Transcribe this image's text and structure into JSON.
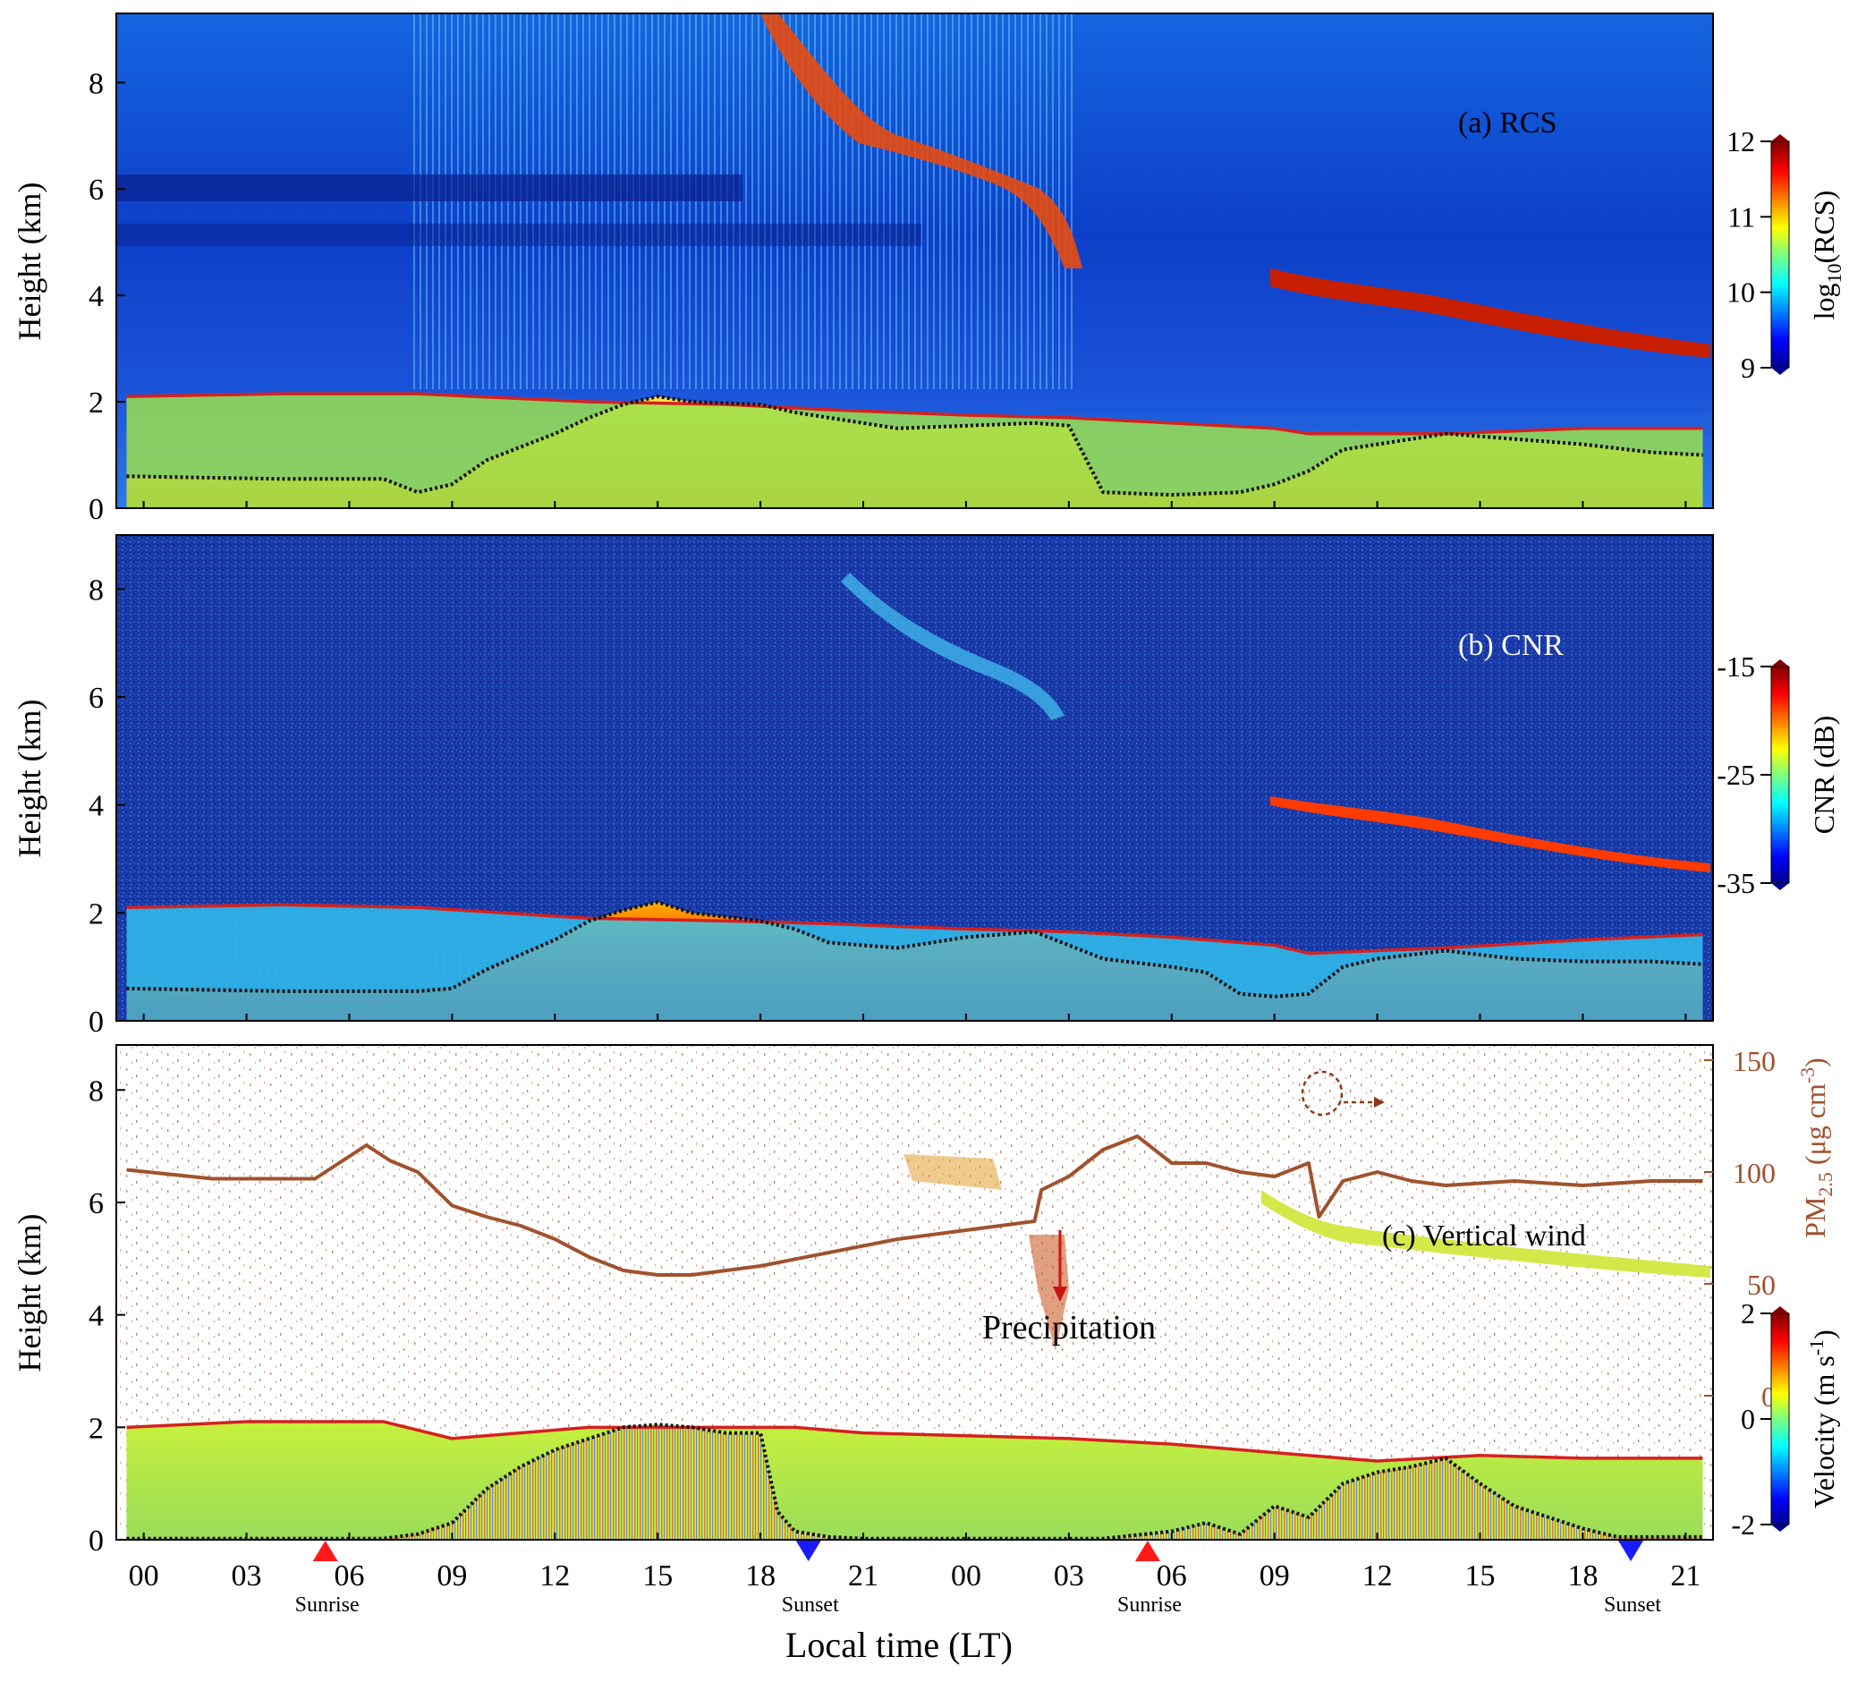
{
  "chart_data": [
    {
      "type": "heatmap",
      "panel": "a",
      "panel_label": "(a) RCS",
      "ylabel": "Height (km)",
      "ylim": [
        0,
        9.3
      ],
      "yticks": [
        "0",
        "2",
        "4",
        "6",
        "8"
      ],
      "colorbar": {
        "label": "log10(RCS)",
        "label_main": "log",
        "label_sub": "10",
        "label_rest": "(RCS)",
        "range": [
          9,
          12
        ],
        "ticks": [
          "9",
          "10",
          "11",
          "12"
        ],
        "colormap": "jet"
      },
      "lines": [
        {
          "color": "#d62020",
          "x": [
            -0.5,
            4,
            8,
            13,
            17,
            20,
            24,
            27,
            30,
            33,
            34,
            38,
            42,
            45.5
          ],
          "y": [
            2.1,
            2.15,
            2.15,
            2.0,
            1.95,
            1.85,
            1.75,
            1.7,
            1.6,
            1.5,
            1.4,
            1.4,
            1.5,
            1.5
          ]
        },
        {
          "color": "#111111",
          "dotted": true,
          "x": [
            -0.5,
            4,
            7,
            8,
            9,
            10,
            12,
            13,
            14,
            15,
            16,
            18,
            19,
            20,
            22,
            24,
            26,
            27,
            28,
            30,
            32,
            33,
            34,
            35,
            36,
            38,
            40,
            42,
            44,
            45.5
          ],
          "y": [
            0.6,
            0.55,
            0.55,
            0.3,
            0.45,
            0.9,
            1.4,
            1.7,
            1.95,
            2.1,
            2.0,
            1.95,
            1.8,
            1.7,
            1.5,
            1.55,
            1.6,
            1.55,
            0.3,
            0.25,
            0.3,
            0.45,
            0.7,
            1.1,
            1.2,
            1.4,
            1.3,
            1.2,
            1.05,
            1.0
          ]
        }
      ]
    },
    {
      "type": "heatmap",
      "panel": "b",
      "panel_label": "(b) CNR",
      "ylabel": "Height (km)",
      "ylim": [
        0,
        9.0
      ],
      "yticks": [
        "0",
        "2",
        "4",
        "6",
        "8"
      ],
      "colorbar": {
        "label": "CNR (dB)",
        "range": [
          -35,
          -15
        ],
        "ticks": [
          "-35",
          "-25",
          "-15"
        ],
        "colormap": "jet"
      },
      "lines": [
        {
          "color": "#d62020",
          "x": [
            -0.5,
            4,
            8,
            13,
            17,
            20,
            24,
            27,
            30,
            33,
            34,
            38,
            42,
            45.5
          ],
          "y": [
            2.1,
            2.15,
            2.1,
            1.9,
            1.85,
            1.8,
            1.7,
            1.65,
            1.55,
            1.4,
            1.25,
            1.35,
            1.5,
            1.6
          ]
        },
        {
          "color": "#111111",
          "dotted": true,
          "x": [
            -0.5,
            4,
            8,
            9,
            10,
            12,
            13,
            14,
            15,
            16,
            18,
            19,
            20,
            22,
            24,
            26,
            27,
            28,
            30,
            31,
            32,
            33,
            34,
            35,
            36,
            38,
            40,
            42,
            44,
            45.5
          ],
          "y": [
            0.6,
            0.55,
            0.55,
            0.6,
            0.95,
            1.5,
            1.85,
            2.05,
            2.2,
            2.0,
            1.85,
            1.7,
            1.45,
            1.35,
            1.55,
            1.65,
            1.4,
            1.15,
            1.0,
            0.9,
            0.5,
            0.45,
            0.5,
            1.0,
            1.15,
            1.3,
            1.15,
            1.1,
            1.1,
            1.05
          ]
        }
      ]
    },
    {
      "type": "heatmap",
      "panel": "c",
      "panel_label": "(c) Vertical  wind",
      "ylabel": "Height (km)",
      "ylim": [
        0,
        8.8
      ],
      "yticks": [
        "0",
        "2",
        "4",
        "6",
        "8"
      ],
      "xlabel": "Local  time (LT)",
      "xticks": [
        "00",
        "03",
        "06",
        "09",
        "12",
        "15",
        "18",
        "21",
        "00",
        "03",
        "06",
        "09",
        "12",
        "15",
        "18",
        "21"
      ],
      "colorbar": {
        "label": "Velocity (m s-1)",
        "label_main": "Velocity (m s",
        "label_sup": "-1",
        "label_end": ")",
        "range": [
          -2,
          2
        ],
        "ticks": [
          "-2",
          "0",
          "2"
        ],
        "colormap": "jet"
      },
      "right_axis": {
        "label_main": "PM",
        "label_sub": "2.5",
        "label_mid": " (μg cm",
        "label_sup": "-3",
        "label_end": ")",
        "ticks": [
          "0",
          "50",
          "100",
          "150"
        ],
        "range": [
          0,
          150
        ],
        "color": "#a0522d"
      },
      "annotations": [
        {
          "text": "Precipitation",
          "x": 27.5,
          "y": 3.9
        },
        {
          "text": "Sunrise",
          "x": 5.3
        },
        {
          "text": "Sunset",
          "x": 19.4
        },
        {
          "text": "Sunrise",
          "x": 29.3
        },
        {
          "text": "Sunset",
          "x": 43.4
        }
      ],
      "pm25": {
        "color": "#a0522d",
        "x": [
          -0.5,
          2,
          5,
          6.5,
          7.2,
          8,
          9,
          10,
          11,
          12,
          13,
          14,
          15,
          16,
          18,
          20,
          22,
          24,
          26,
          26.2,
          27,
          28,
          29,
          30,
          31,
          32,
          33,
          34,
          34.3,
          35,
          36,
          37,
          38,
          40,
          42,
          44,
          45.5
        ],
        "y": [
          101,
          97,
          97,
          112,
          105,
          100,
          85,
          80,
          76,
          70,
          62,
          56,
          54,
          54,
          58,
          64,
          70,
          74,
          78,
          92,
          98,
          110,
          116,
          104,
          104,
          100,
          98,
          104,
          80,
          96,
          100,
          96,
          94,
          96,
          94,
          96,
          96
        ]
      },
      "lines": [
        {
          "color": "#d62020",
          "x": [
            -0.5,
            3,
            7,
            9,
            13,
            17,
            19,
            21,
            24,
            27,
            30,
            33,
            36,
            39,
            42,
            45.5
          ],
          "y": [
            2.0,
            2.1,
            2.1,
            1.8,
            2.0,
            2.0,
            2.0,
            1.9,
            1.85,
            1.8,
            1.7,
            1.55,
            1.4,
            1.5,
            1.45,
            1.45
          ]
        },
        {
          "color": "#111111",
          "dotted": true,
          "x": [
            -0.5,
            7,
            8,
            9,
            9.5,
            10,
            11,
            12,
            13,
            14,
            15,
            16,
            17,
            18,
            18.5,
            19,
            20,
            21,
            24,
            28,
            30,
            31,
            32,
            33,
            34,
            35,
            36,
            37,
            38,
            39,
            40,
            41,
            42,
            43,
            44,
            45.5
          ],
          "y": [
            0.02,
            0.02,
            0.1,
            0.3,
            0.6,
            0.9,
            1.3,
            1.6,
            1.8,
            2.0,
            2.05,
            2.0,
            1.9,
            1.9,
            0.5,
            0.15,
            0.05,
            0.02,
            0.02,
            0.02,
            0.15,
            0.3,
            0.1,
            0.6,
            0.4,
            1.0,
            1.2,
            1.3,
            1.45,
            1.0,
            0.6,
            0.4,
            0.2,
            0.05,
            0.05,
            0.05
          ]
        }
      ]
    }
  ],
  "x_axis": {
    "range": [
      -0.8,
      45.8
    ],
    "tick_hours": [
      0,
      3,
      6,
      9,
      12,
      15,
      18,
      21,
      24,
      27,
      30,
      33,
      36,
      39,
      42,
      45
    ]
  },
  "colors": {
    "pbl_top": "#d62020",
    "mixing_layer": "#111111",
    "sunrise_marker": "#ff1a1a",
    "sunset_marker": "#1a1aff",
    "pm25_line": "#a0522d",
    "precip_arrow": "#c81414"
  }
}
